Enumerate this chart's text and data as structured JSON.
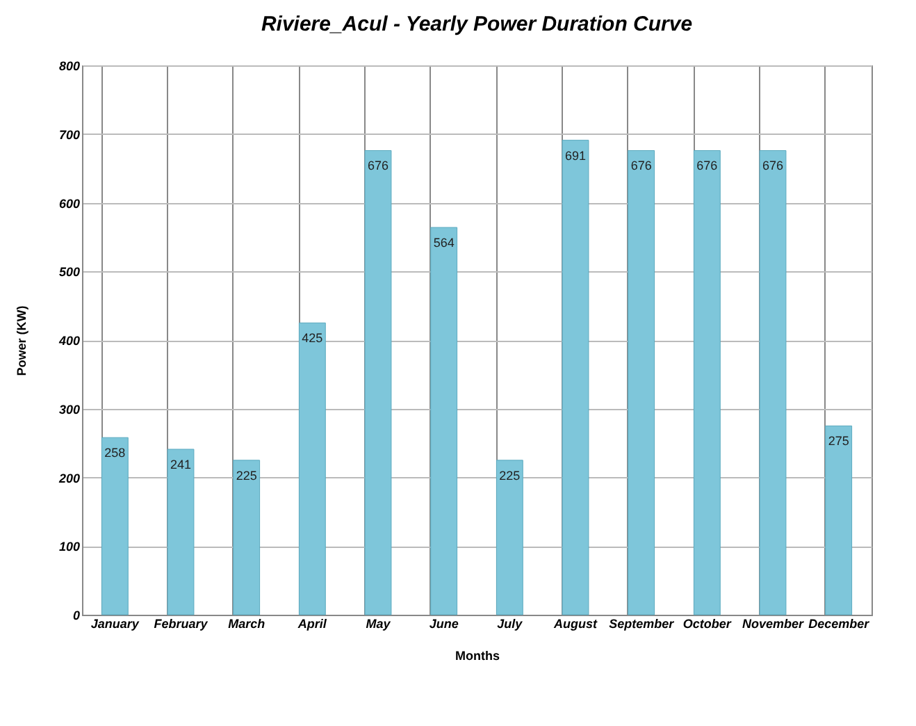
{
  "chart_data": {
    "type": "bar",
    "title": "Riviere_Acul - Yearly Power Duration Curve",
    "xlabel": "Months",
    "ylabel": "Power (KW)",
    "categories": [
      "January",
      "February",
      "March",
      "April",
      "May",
      "June",
      "July",
      "August",
      "September",
      "October",
      "November",
      "December"
    ],
    "values": [
      258,
      241,
      225,
      425,
      676,
      564,
      225,
      691,
      676,
      676,
      676,
      275
    ],
    "color": "#7ec6da",
    "ylim": [
      0,
      800
    ],
    "yticks": [
      0,
      100,
      200,
      300,
      400,
      500,
      600,
      700,
      800
    ],
    "grid": true,
    "data_labels": true
  }
}
